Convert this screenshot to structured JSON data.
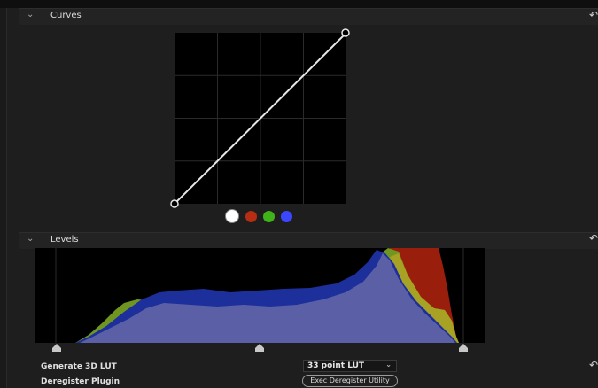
{
  "curves": {
    "title": "Curves",
    "channels": [
      {
        "name": "white-channel",
        "color": "#ffffff"
      },
      {
        "name": "red-channel",
        "color": "#b52d13"
      },
      {
        "name": "green-channel",
        "color": "#3fb419"
      },
      {
        "name": "blue-channel",
        "color": "#3b47ff"
      }
    ]
  },
  "levels": {
    "title": "Levels"
  },
  "settings": {
    "generate_lut_label": "Generate 3D LUT",
    "lut_value": "33 point LUT",
    "deregister_label": "Deregister Plugin",
    "exec_button_label": "Exec Deregister Utility"
  },
  "icons": {
    "reset": "↶",
    "chevron": "⌄"
  }
}
